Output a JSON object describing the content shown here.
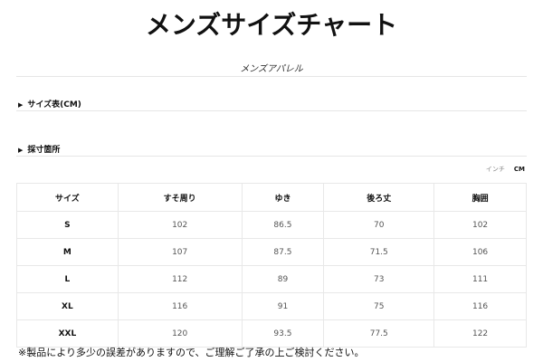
{
  "title": "メンズサイズチャート",
  "subtitle": "メンズアパレル",
  "sections": [
    {
      "label": "サイズ表(CM)",
      "icon": "triangle-right-icon"
    },
    {
      "label": "採寸箇所",
      "icon": "triangle-right-icon"
    }
  ],
  "units": {
    "inch": "インチ",
    "cm": "CM",
    "selected": "CM"
  },
  "table": {
    "headers": [
      "サイズ",
      "すそ周り",
      "ゆき",
      "後ろ丈",
      "胸囲"
    ],
    "rows": [
      [
        "S",
        "102",
        "86.5",
        "70",
        "102"
      ],
      [
        "M",
        "107",
        "87.5",
        "71.5",
        "106"
      ],
      [
        "L",
        "112",
        "89",
        "73",
        "111"
      ],
      [
        "XL",
        "116",
        "91",
        "75",
        "116"
      ],
      [
        "XXL",
        "120",
        "93.5",
        "77.5",
        "122"
      ]
    ]
  },
  "note": "※製品により多少の誤差がありますので、ご理解ご了承の上ご検討ください。"
}
